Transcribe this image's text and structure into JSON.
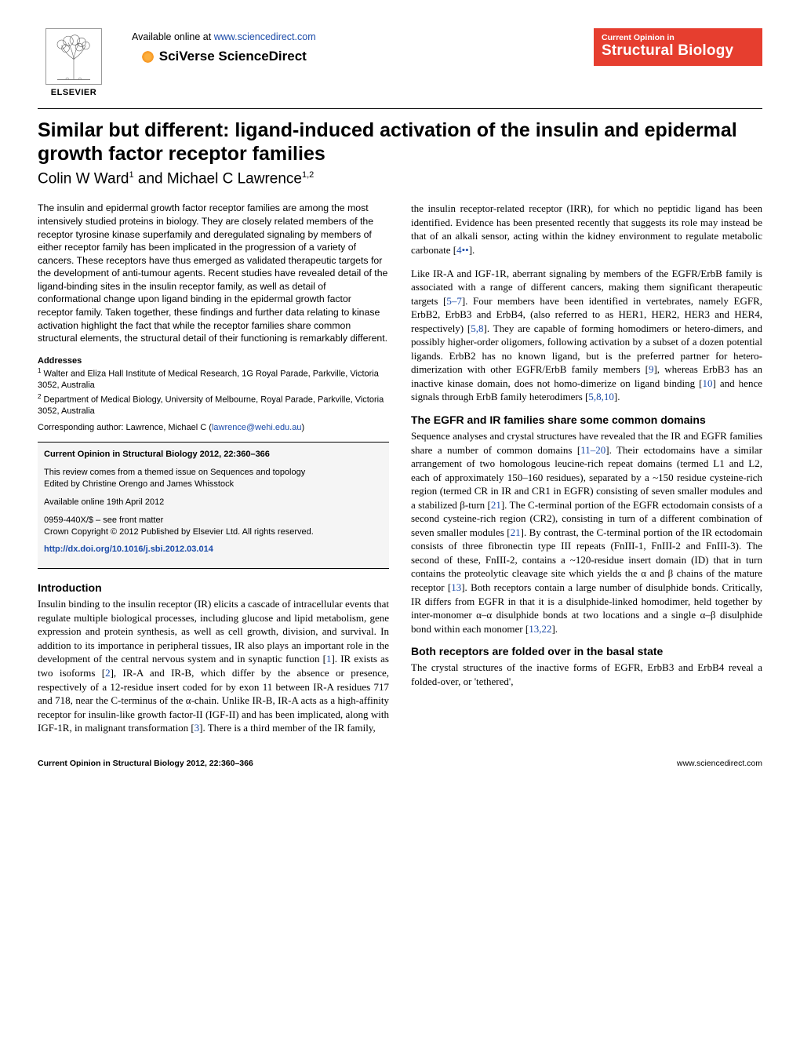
{
  "header": {
    "elsevier_label": "ELSEVIER",
    "available_text": "Available online at ",
    "available_url": "www.sciencedirect.com",
    "sciverse": "SciVerse ScienceDirect",
    "journal_small": "Current Opinion in",
    "journal_large": "Structural Biology"
  },
  "title": "Similar but different: ligand-induced activation of the insulin and epidermal growth factor receptor families",
  "authors_html": "Colin W Ward<sup>1</sup> and Michael C Lawrence<sup>1,2</sup>",
  "abstract": "The insulin and epidermal growth factor receptor families are among the most intensively studied proteins in biology. They are closely related members of the receptor tyrosine kinase superfamily and deregulated signaling by members of either receptor family has been implicated in the progression of a variety of cancers. These receptors have thus emerged as validated therapeutic targets for the development of anti-tumour agents. Recent studies have revealed detail of the ligand-binding sites in the insulin receptor family, as well as detail of conformational change upon ligand binding in the epidermal growth factor receptor family. Taken together, these findings and further data relating to kinase activation highlight the fact that while the receptor families share common structural elements, the structural detail of their functioning is remarkably different.",
  "addresses_head": "Addresses",
  "address1": "<sup>1</sup> Walter and Eliza Hall Institute of Medical Research, 1G Royal Parade, Parkville, Victoria 3052, Australia",
  "address2": "<sup>2</sup> Department of Medical Biology, University of Melbourne, Royal Parade, Parkville, Victoria 3052, Australia",
  "corr_text": "Corresponding author: Lawrence, Michael C (",
  "corr_email": "lawrence@wehi.edu.au",
  "corr_close": ")",
  "infobox": {
    "cite": "Current Opinion in Structural Biology 2012, 22:360–366",
    "themed": "This review comes from a themed issue on Sequences and topology",
    "edited": "Edited by Christine Orengo and James Whisstock",
    "online": "Available online 19th April 2012",
    "issn": "0959-440X/$ – see front matter",
    "crown": "Crown Copyright © 2012 Published by Elsevier Ltd. All rights reserved.",
    "doi": "http://dx.doi.org/10.1016/j.sbi.2012.03.014"
  },
  "intro_head": "Introduction",
  "intro_p1": "Insulin binding to the insulin receptor (IR) elicits a cascade of intracellular events that regulate multiple biological processes, including glucose and lipid metabolism, gene expression and protein synthesis, as well as cell growth, division, and survival. In addition to its importance in peripheral tissues, IR also plays an important role in the development of the central nervous system and in synaptic function [<a class='ref'>1</a>]. IR exists as two isoforms [<a class='ref'>2</a>], IR-A and IR-B, which differ by the absence or presence, respectively of a 12-residue insert coded for by exon 11 between IR-A residues 717 and 718, near the C-terminus of the α-chain. Unlike IR-B, IR-A acts as a high-affinity receptor for insulin-like growth factor-II (IGF-II) and has been implicated, along with IGF-1R, in malignant transformation [<a class='ref'>3</a>]. There is a third member of the IR family,",
  "col2_p1": "the insulin receptor-related receptor (IRR), for which no peptidic ligand has been identified. Evidence has been presented recently that suggests its role may instead be that of an alkali sensor, acting within the kidney environment to regulate metabolic carbonate [<a class='ref'>4••</a>].",
  "col2_p2": "Like IR-A and IGF-1R, aberrant signaling by members of the EGFR/ErbB family is associated with a range of different cancers, making them significant therapeutic targets [<a class='ref'>5–7</a>]. Four members have been identified in vertebrates, namely EGFR, ErbB2, ErbB3 and ErbB4, (also referred to as HER1, HER2, HER3 and HER4, respectively) [<a class='ref'>5,8</a>]. They are capable of forming homodimers or hetero-dimers, and possibly higher-order oligomers, following activation by a subset of a dozen potential ligands. ErbB2 has no known ligand, but is the preferred partner for hetero-dimerization with other EGFR/ErbB family members [<a class='ref'>9</a>], whereas ErbB3 has an inactive kinase domain, does not homo-dimerize on ligand binding [<a class='ref'>10</a>] and hence signals through ErbB family heterodimers [<a class='ref'>5,8,10</a>].",
  "sec2_head": "The EGFR and IR families share some common domains",
  "sec2_p1": "Sequence analyses and crystal structures have revealed that the IR and EGFR families share a number of common domains [<a class='ref'>11–20</a>]. Their ectodomains have a similar arrangement of two homologous leucine-rich repeat domains (termed L1 and L2, each of approximately 150–160 residues), separated by a ~150 residue cysteine-rich region (termed CR in IR and CR1 in EGFR) consisting of seven smaller modules and a stabilized β-turn [<a class='ref'>21</a>]. The C-terminal portion of the EGFR ectodomain consists of a second cysteine-rich region (CR2), consisting in turn of a different combination of seven smaller modules [<a class='ref'>21</a>]. By contrast, the C-terminal portion of the IR ectodomain consists of three fibronectin type III repeats (FnIII-1, FnIII-2 and FnIII-3). The second of these, FnIII-2, contains a ~120-residue insert domain (ID) that in turn contains the proteolytic cleavage site which yields the α and β chains of the mature receptor [<a class='ref'>13</a>]. Both receptors contain a large number of disulphide bonds. Critically, IR differs from EGFR in that it is a disulphide-linked homodimer, held together by inter-monomer α–α disulphide bonds at two locations and a single α–β disulphide bond within each monomer [<a class='ref'>13,22</a>].",
  "sec3_head": "Both receptors are folded over in the basal state",
  "sec3_p1": "The crystal structures of the inactive forms of EGFR, ErbB3 and ErbB4 reveal a folded-over, or 'tethered',",
  "footer": {
    "left": "Current Opinion in Structural Biology 2012, 22:360–366",
    "right": "www.sciencedirect.com"
  },
  "colors": {
    "link": "#1a4aa8",
    "journal_red": "#e63e2f"
  }
}
